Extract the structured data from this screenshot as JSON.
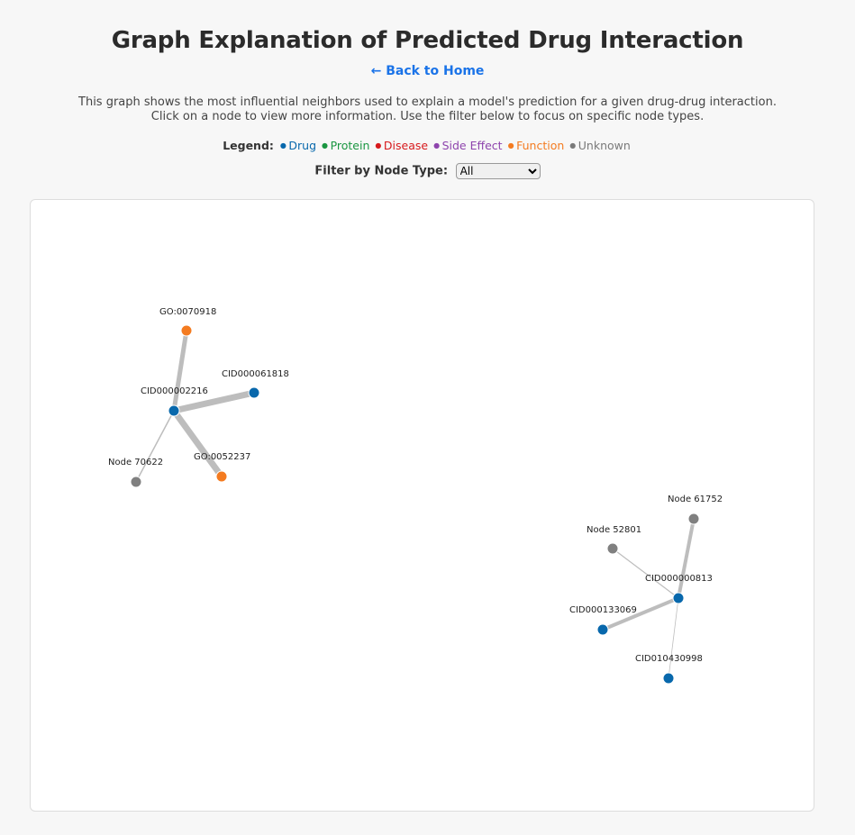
{
  "header": {
    "title": "Graph Explanation of Predicted Drug Interaction",
    "back_link": "← Back to Home",
    "description_line1": "This graph shows the most influential neighbors used to explain a model's prediction for a given drug-drug interaction.",
    "description_line2": "Click on a node to view more information. Use the filter below to focus on specific node types."
  },
  "legend": {
    "title": "Legend:",
    "items": [
      {
        "label": "Drug",
        "color": "#0868ac"
      },
      {
        "label": "Protein",
        "color": "#1a9641"
      },
      {
        "label": "Disease",
        "color": "#d7191c"
      },
      {
        "label": "Side Effect",
        "color": "#8e44ad"
      },
      {
        "label": "Function",
        "color": "#f47b20"
      },
      {
        "label": "Unknown",
        "color": "#7a7a7a"
      }
    ]
  },
  "filter": {
    "label": "Filter by Node Type:",
    "selected": "All",
    "options": [
      "All"
    ]
  },
  "graph": {
    "type_colors": {
      "Drug": "#0868ac",
      "Function": "#f47b20",
      "Unknown": "#808080"
    },
    "nodes": [
      {
        "id": "CID000002216",
        "type": "Drug"
      },
      {
        "id": "GO:0070918",
        "type": "Function"
      },
      {
        "id": "CID000061818",
        "type": "Drug"
      },
      {
        "id": "GO:0052237",
        "type": "Function"
      },
      {
        "id": "Node 70622",
        "type": "Unknown"
      },
      {
        "id": "CID000000813",
        "type": "Drug"
      },
      {
        "id": "Node 61752",
        "type": "Unknown"
      },
      {
        "id": "Node 52801",
        "type": "Unknown"
      },
      {
        "id": "CID000133069",
        "type": "Drug"
      },
      {
        "id": "CID010430998",
        "type": "Drug"
      }
    ],
    "edges": [
      {
        "source": "CID000002216",
        "target": "GO:0070918",
        "weight": 5
      },
      {
        "source": "CID000002216",
        "target": "CID000061818",
        "weight": 7
      },
      {
        "source": "CID000002216",
        "target": "GO:0052237",
        "weight": 7
      },
      {
        "source": "CID000002216",
        "target": "Node 70622",
        "weight": 1.5
      },
      {
        "source": "CID000000813",
        "target": "Node 61752",
        "weight": 4
      },
      {
        "source": "CID000000813",
        "target": "Node 52801",
        "weight": 1.2
      },
      {
        "source": "CID000000813",
        "target": "CID000133069",
        "weight": 4
      },
      {
        "source": "CID000000813",
        "target": "CID010430998",
        "weight": 0.8
      }
    ]
  }
}
